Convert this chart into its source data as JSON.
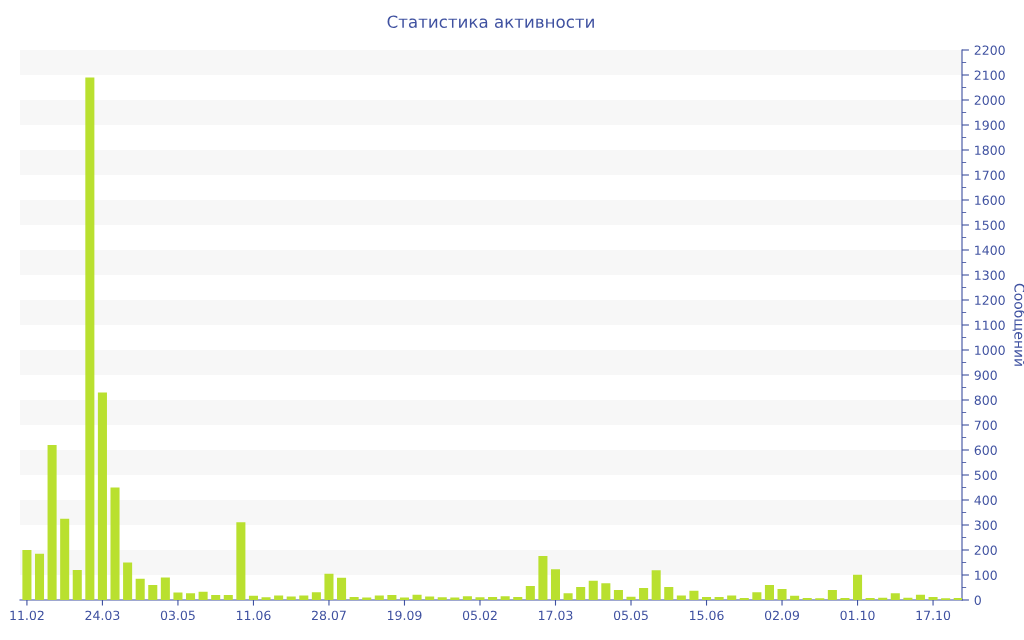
{
  "chart_data": {
    "type": "bar",
    "title": "Статистика активности",
    "ylabel": "Сообщений",
    "categories": [
      "11.02",
      null,
      null,
      null,
      null,
      null,
      "24.03",
      null,
      null,
      null,
      null,
      null,
      "03.05",
      null,
      null,
      null,
      null,
      null,
      "11.06",
      null,
      null,
      null,
      null,
      null,
      "28.07",
      null,
      null,
      null,
      null,
      null,
      "19.09",
      null,
      null,
      null,
      null,
      null,
      "05.02",
      null,
      null,
      null,
      null,
      null,
      "17.03",
      null,
      null,
      null,
      null,
      null,
      "05.05",
      null,
      null,
      null,
      null,
      null,
      "15.06",
      null,
      null,
      null,
      null,
      null,
      "02.09",
      null,
      null,
      null,
      null,
      null,
      "01.10",
      null,
      null,
      null,
      null,
      null,
      "17.10",
      null,
      null
    ],
    "values": [
      200,
      185,
      620,
      325,
      120,
      2090,
      830,
      450,
      150,
      85,
      60,
      90,
      30,
      27,
      33,
      20,
      20,
      311,
      17,
      11,
      18,
      14,
      18,
      31,
      105,
      89,
      12,
      10,
      18,
      20,
      10,
      21,
      14,
      11,
      10,
      15,
      11,
      12,
      15,
      12,
      56,
      176,
      123,
      27,
      52,
      77,
      67,
      40,
      13,
      48,
      119,
      52,
      18,
      37,
      12,
      12,
      18,
      8,
      31,
      60,
      44,
      17,
      8,
      7,
      40,
      8,
      101,
      8,
      9,
      27,
      9,
      21,
      12,
      7,
      8
    ],
    "color": "#b9e02f",
    "ylim": [
      0,
      2200
    ],
    "yticks": [
      0,
      {
        "value": 50,
        "label": null
      },
      100,
      {
        "value": 150,
        "label": null
      },
      200,
      {
        "value": 250,
        "label": null
      },
      300,
      {
        "value": 350,
        "label": null
      },
      400,
      {
        "value": 450,
        "label": null
      },
      500,
      {
        "value": 550,
        "label": null
      },
      600,
      {
        "value": 650,
        "label": null
      },
      700,
      {
        "value": 750,
        "label": null
      },
      800,
      {
        "value": 850,
        "label": null
      },
      900,
      {
        "value": 950,
        "label": null
      },
      1000,
      {
        "value": 1050,
        "label": null
      },
      1100,
      {
        "value": 1150,
        "label": null
      },
      1200,
      {
        "value": 1250,
        "label": null
      },
      1300,
      {
        "value": 1350,
        "label": null
      },
      1400,
      {
        "value": 1450,
        "label": null
      },
      1500,
      {
        "value": 1550,
        "label": null
      },
      1600,
      {
        "value": 1650,
        "label": null
      },
      1700,
      {
        "value": 1750,
        "label": null
      },
      1800,
      {
        "value": 1850,
        "label": null
      },
      1900,
      {
        "value": 1950,
        "label": null
      },
      2000,
      {
        "value": 2050,
        "label": null
      },
      2100,
      {
        "value": 2150,
        "label": null
      },
      2200
    ],
    "bands": [
      {
        "axis": "y",
        "from": 100,
        "to": 200,
        "color": "#f7f7f7"
      },
      {
        "axis": "y",
        "from": 300,
        "to": 400,
        "color": "#f7f7f7"
      },
      {
        "axis": "y",
        "from": 500,
        "to": 600,
        "color": "#f7f7f7"
      },
      {
        "axis": "y",
        "from": 700,
        "to": 800,
        "color": "#f7f7f7"
      },
      {
        "axis": "y",
        "from": 900,
        "to": 1000,
        "color": "#f7f7f7"
      },
      {
        "axis": "y",
        "from": 1100,
        "to": 1200,
        "color": "#f7f7f7"
      },
      {
        "axis": "y",
        "from": 1300,
        "to": 1400,
        "color": "#f7f7f7"
      },
      {
        "axis": "y",
        "from": 1500,
        "to": 1600,
        "color": "#f7f7f7"
      },
      {
        "axis": "y",
        "from": 1700,
        "to": 1800,
        "color": "#f7f7f7"
      },
      {
        "axis": "y",
        "from": 1900,
        "to": 2000,
        "color": "#f7f7f7"
      },
      {
        "axis": "y",
        "from": 2100,
        "to": 2200,
        "color": "#f7f7f7"
      }
    ]
  }
}
